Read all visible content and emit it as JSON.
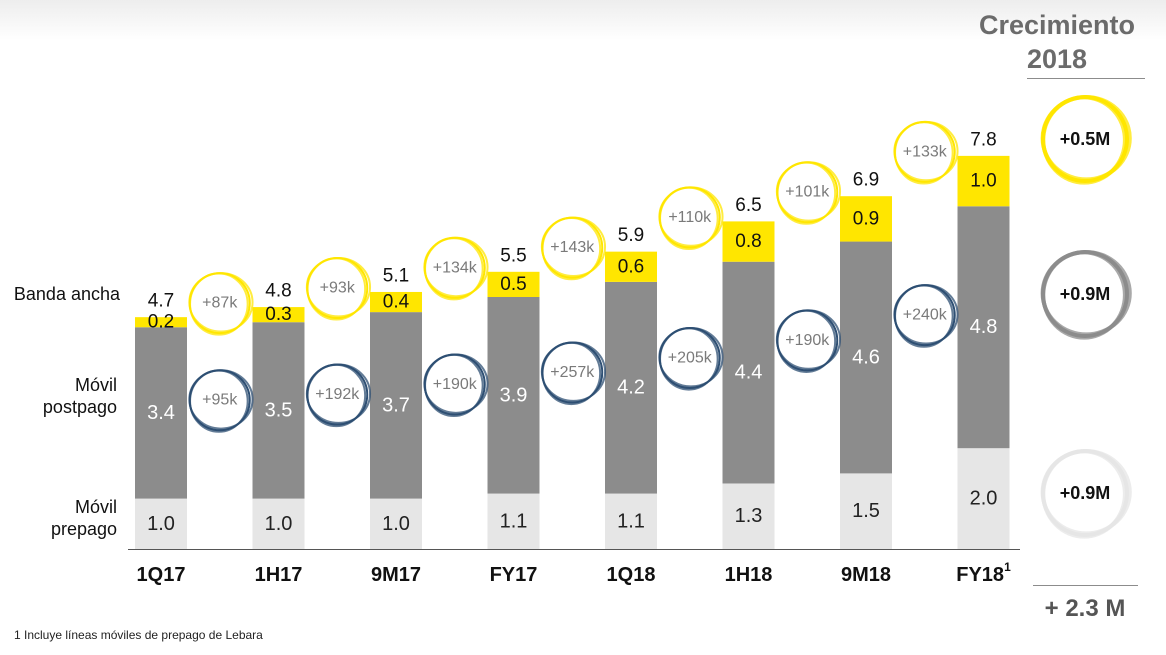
{
  "header": {
    "title_line1": "Crecimiento",
    "title_line2": "2018"
  },
  "row_labels": {
    "banda": "Banda ancha",
    "postpago_1": "Móvil",
    "postpago_2": "postpago",
    "prepago_1": "Móvil",
    "prepago_2": "prepago"
  },
  "growth_2018": {
    "banda": "+0.5M",
    "postpago": "+0.9M",
    "prepago": "+0.9M",
    "total": "+ 2.3 M"
  },
  "footnote": "1 Incluye líneas móviles de prepago de Lebara",
  "colors": {
    "prepago": "#e6e6e6",
    "postpago": "#8c8c8c",
    "banda": "#ffe600",
    "banda_circle": "#ffe600",
    "postpago_circle": "#2e4f73",
    "growth_postpago_ring": "#8c8c8c",
    "growth_prepago_ring": "#e6e6e6"
  },
  "chart_data": {
    "type": "bar",
    "stacked": true,
    "categories": [
      "1Q17",
      "1H17",
      "9M17",
      "FY17",
      "1Q18",
      "1H18",
      "9M18",
      "FY18"
    ],
    "category_superscripts": [
      "",
      "",
      "",
      "",
      "",
      "",
      "",
      "1"
    ],
    "series": [
      {
        "name": "Móvil prepago",
        "values": [
          1.0,
          1.0,
          1.0,
          1.1,
          1.1,
          1.3,
          1.5,
          2.0
        ],
        "labels": [
          "1.0",
          "1.0",
          "1.0",
          "1.1",
          "1.1",
          "1.3",
          "1.5",
          "2.0"
        ]
      },
      {
        "name": "Móvil postpago",
        "values": [
          3.4,
          3.5,
          3.7,
          3.9,
          4.2,
          4.4,
          4.6,
          4.8
        ],
        "labels": [
          "3.4",
          "3.5",
          "3.7",
          "3.9",
          "4.2",
          "4.4",
          "4.6",
          "4.8"
        ]
      },
      {
        "name": "Banda ancha",
        "values": [
          0.2,
          0.3,
          0.4,
          0.5,
          0.6,
          0.8,
          0.9,
          1.0
        ],
        "labels": [
          "0.2",
          "0.3",
          "0.4",
          "0.5",
          "0.6",
          "0.8",
          "0.9",
          "1.0"
        ]
      }
    ],
    "totals": [
      4.7,
      4.8,
      5.1,
      5.5,
      5.9,
      6.5,
      6.9,
      7.8
    ],
    "total_labels": [
      "4.7",
      "4.8",
      "5.1",
      "5.5",
      "5.9",
      "6.5",
      "6.9",
      "7.8"
    ],
    "banda_increments": [
      "+87k",
      "+93k",
      "+134k",
      "+143k",
      "+110k",
      "+101k",
      "+133k"
    ],
    "postpago_increments": [
      "+95k",
      "+192k",
      "+190k",
      "+257k",
      "+205k",
      "+190k",
      "+240k"
    ],
    "ylim": [
      0,
      7.8
    ]
  }
}
